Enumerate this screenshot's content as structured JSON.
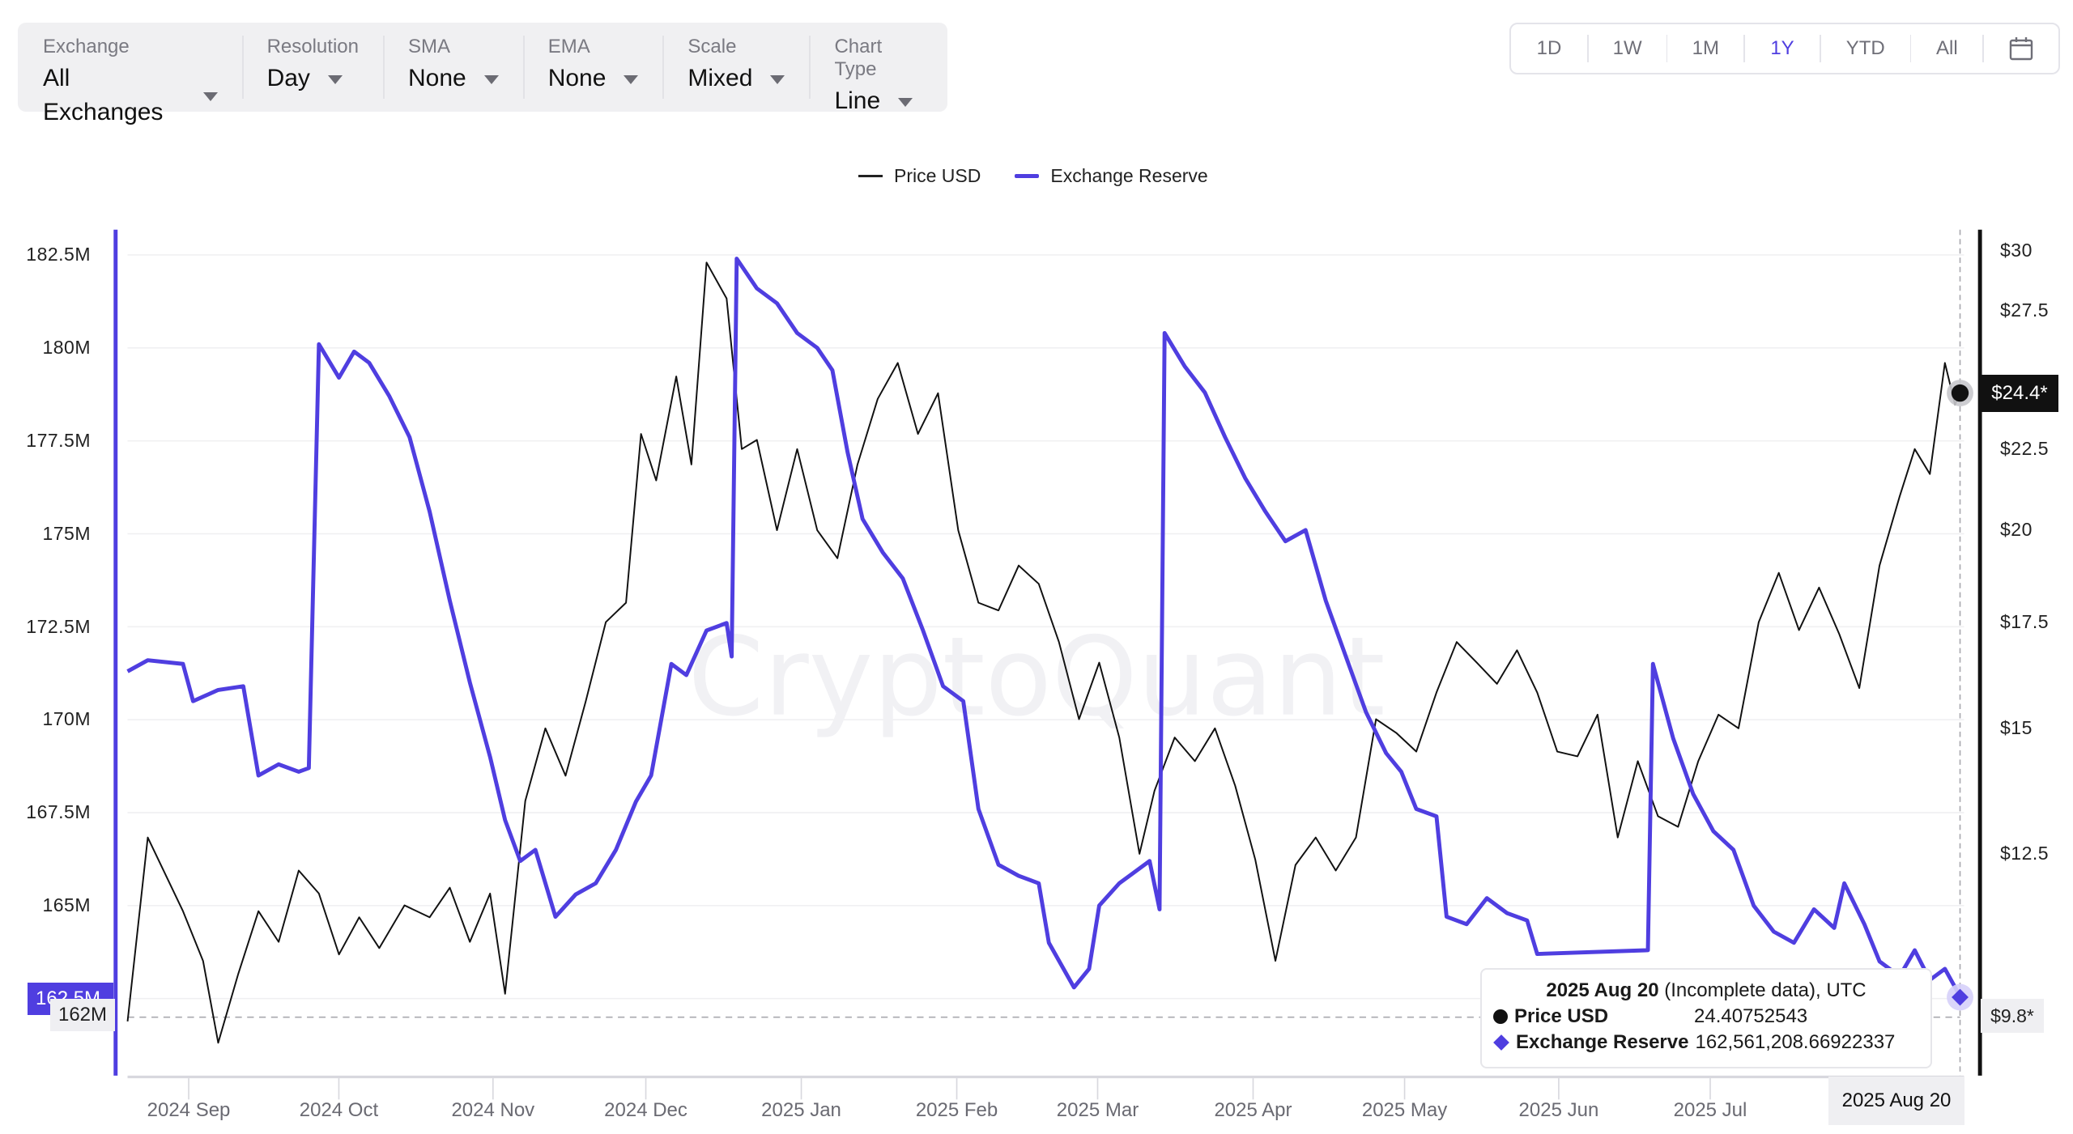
{
  "filters": [
    {
      "label": "Exchange",
      "value": "All Exchanges"
    },
    {
      "label": "Resolution",
      "value": "Day"
    },
    {
      "label": "SMA",
      "value": "None"
    },
    {
      "label": "EMA",
      "value": "None"
    },
    {
      "label": "Scale",
      "value": "Mixed"
    },
    {
      "label": "Chart Type",
      "value": "Line"
    }
  ],
  "range_buttons": [
    {
      "label": "1D",
      "active": false
    },
    {
      "label": "1W",
      "active": false
    },
    {
      "label": "1M",
      "active": false
    },
    {
      "label": "1Y",
      "active": true
    },
    {
      "label": "YTD",
      "active": false
    },
    {
      "label": "All",
      "active": false
    }
  ],
  "calendar_icon": "calendar-icon",
  "watermark": "CryptoQuant",
  "colors": {
    "accent": "#4f3ee0",
    "price": "#111111",
    "grid": "#f0f0f2",
    "axis_text": "#6a6a72"
  },
  "legend": {
    "price": "Price USD",
    "reserve": "Exchange Reserve"
  },
  "tooltip": {
    "title_bold": "2025 Aug 20",
    "title_light": " (Incomplete data), UTC",
    "price_label": "Price USD",
    "price_value": "24.40752543",
    "reserve_label": "Exchange Reserve",
    "reserve_value": "162,561,208.66922337"
  },
  "badges": {
    "left_reserve": "162.5M",
    "left_cursor": "162M",
    "right_price": "$24.4*",
    "right_cursor": "$9.8*",
    "x_cursor": "2025 Aug 20"
  },
  "chart_data": {
    "type": "line",
    "title": "",
    "legend_position": "top-center",
    "grid": true,
    "x_label": "",
    "x_ticks": [
      "2024 Sep",
      "2024 Oct",
      "2024 Nov",
      "2024 Dec",
      "2025 Jan",
      "2025 Feb",
      "2025 Mar",
      "2025 Apr",
      "2025 May",
      "2025 Jun",
      "2025 Jul",
      "2025 Aug"
    ],
    "x_range": [
      "2024 Aug 21",
      "2025 Aug 20"
    ],
    "y_left": {
      "label": "Exchange Reserve",
      "ticks": [
        "182.5M",
        "180M",
        "177.5M",
        "175M",
        "172.5M",
        "170M",
        "167.5M",
        "165M",
        "162.5M"
      ],
      "range": [
        161500000,
        183000000
      ]
    },
    "y_right": {
      "label": "Price USD",
      "scale": "log",
      "ticks": [
        "$30",
        "$27.5",
        "$25",
        "$22.5",
        "$20",
        "$17.5",
        "$15",
        "$12.5"
      ],
      "range": [
        9.5,
        31
      ]
    },
    "series": [
      {
        "name": "Price USD",
        "axis": "right",
        "color": "#111111",
        "points": [
          [
            "2024-08-21",
            9.8
          ],
          [
            "2024-08-25",
            12.8
          ],
          [
            "2024-09-01",
            11.5
          ],
          [
            "2024-09-05",
            10.7
          ],
          [
            "2024-09-08",
            9.5
          ],
          [
            "2024-09-12",
            10.5
          ],
          [
            "2024-09-16",
            11.5
          ],
          [
            "2024-09-20",
            11.0
          ],
          [
            "2024-09-24",
            12.2
          ],
          [
            "2024-09-28",
            11.8
          ],
          [
            "2024-10-02",
            10.8
          ],
          [
            "2024-10-06",
            11.4
          ],
          [
            "2024-10-10",
            10.9
          ],
          [
            "2024-10-15",
            11.6
          ],
          [
            "2024-10-20",
            11.4
          ],
          [
            "2024-10-24",
            11.9
          ],
          [
            "2024-10-28",
            11.0
          ],
          [
            "2024-11-01",
            11.8
          ],
          [
            "2024-11-04",
            10.2
          ],
          [
            "2024-11-08",
            13.5
          ],
          [
            "2024-11-12",
            15.0
          ],
          [
            "2024-11-16",
            14.0
          ],
          [
            "2024-11-20",
            15.6
          ],
          [
            "2024-11-24",
            17.5
          ],
          [
            "2024-11-28",
            18.0
          ],
          [
            "2024-12-01",
            23.0
          ],
          [
            "2024-12-04",
            21.5
          ],
          [
            "2024-12-08",
            25.0
          ],
          [
            "2024-12-11",
            22.0
          ],
          [
            "2024-12-14",
            29.5
          ],
          [
            "2024-12-18",
            28.0
          ],
          [
            "2024-12-21",
            22.5
          ],
          [
            "2024-12-24",
            22.8
          ],
          [
            "2024-12-28",
            20.0
          ],
          [
            "2025-01-01",
            22.5
          ],
          [
            "2025-01-05",
            20.0
          ],
          [
            "2025-01-09",
            19.2
          ],
          [
            "2025-01-13",
            22.0
          ],
          [
            "2025-01-17",
            24.2
          ],
          [
            "2025-01-21",
            25.5
          ],
          [
            "2025-01-25",
            23.0
          ],
          [
            "2025-01-29",
            24.4
          ],
          [
            "2025-02-02",
            20.0
          ],
          [
            "2025-02-06",
            18.0
          ],
          [
            "2025-02-10",
            17.8
          ],
          [
            "2025-02-14",
            19.0
          ],
          [
            "2025-02-18",
            18.5
          ],
          [
            "2025-02-22",
            17.0
          ],
          [
            "2025-02-26",
            15.2
          ],
          [
            "2025-03-02",
            16.5
          ],
          [
            "2025-03-06",
            14.8
          ],
          [
            "2025-03-10",
            12.5
          ],
          [
            "2025-03-13",
            13.7
          ],
          [
            "2025-03-17",
            14.8
          ],
          [
            "2025-03-21",
            14.3
          ],
          [
            "2025-03-25",
            15.0
          ],
          [
            "2025-03-29",
            13.8
          ],
          [
            "2025-04-02",
            12.4
          ],
          [
            "2025-04-06",
            10.7
          ],
          [
            "2025-04-10",
            12.3
          ],
          [
            "2025-04-14",
            12.8
          ],
          [
            "2025-04-18",
            12.2
          ],
          [
            "2025-04-22",
            12.8
          ],
          [
            "2025-04-26",
            15.2
          ],
          [
            "2025-04-30",
            14.9
          ],
          [
            "2025-05-04",
            14.5
          ],
          [
            "2025-05-08",
            15.8
          ],
          [
            "2025-05-12",
            17.0
          ],
          [
            "2025-05-16",
            16.5
          ],
          [
            "2025-05-20",
            16.0
          ],
          [
            "2025-05-24",
            16.8
          ],
          [
            "2025-05-28",
            15.8
          ],
          [
            "2025-06-01",
            14.5
          ],
          [
            "2025-06-05",
            14.4
          ],
          [
            "2025-06-09",
            15.3
          ],
          [
            "2025-06-13",
            12.8
          ],
          [
            "2025-06-17",
            14.3
          ],
          [
            "2025-06-21",
            13.2
          ],
          [
            "2025-06-25",
            13.0
          ],
          [
            "2025-06-29",
            14.3
          ],
          [
            "2025-07-03",
            15.3
          ],
          [
            "2025-07-07",
            15.0
          ],
          [
            "2025-07-11",
            17.5
          ],
          [
            "2025-07-15",
            18.8
          ],
          [
            "2025-07-19",
            17.3
          ],
          [
            "2025-07-23",
            18.4
          ],
          [
            "2025-07-27",
            17.2
          ],
          [
            "2025-07-31",
            15.9
          ],
          [
            "2025-08-04",
            19.0
          ],
          [
            "2025-08-08",
            21.0
          ],
          [
            "2025-08-11",
            22.5
          ],
          [
            "2025-08-14",
            21.7
          ],
          [
            "2025-08-17",
            25.5
          ],
          [
            "2025-08-19",
            24.0
          ],
          [
            "2025-08-20",
            24.4
          ]
        ]
      },
      {
        "name": "Exchange Reserve",
        "axis": "left",
        "color": "#4f3ee0",
        "points": [
          [
            "2024-08-21",
            171.3
          ],
          [
            "2024-08-25",
            171.6
          ],
          [
            "2024-09-01",
            171.5
          ],
          [
            "2024-09-03",
            170.5
          ],
          [
            "2024-09-08",
            170.8
          ],
          [
            "2024-09-13",
            170.9
          ],
          [
            "2024-09-16",
            168.5
          ],
          [
            "2024-09-20",
            168.8
          ],
          [
            "2024-09-24",
            168.6
          ],
          [
            "2024-09-26",
            168.7
          ],
          [
            "2024-09-28",
            180.1
          ],
          [
            "2024-10-02",
            179.2
          ],
          [
            "2024-10-05",
            179.9
          ],
          [
            "2024-10-08",
            179.6
          ],
          [
            "2024-10-12",
            178.7
          ],
          [
            "2024-10-16",
            177.6
          ],
          [
            "2024-10-20",
            175.6
          ],
          [
            "2024-10-24",
            173.2
          ],
          [
            "2024-10-28",
            171.0
          ],
          [
            "2024-11-01",
            169.0
          ],
          [
            "2024-11-04",
            167.3
          ],
          [
            "2024-11-07",
            166.2
          ],
          [
            "2024-11-10",
            166.5
          ],
          [
            "2024-11-14",
            164.7
          ],
          [
            "2024-11-18",
            165.3
          ],
          [
            "2024-11-22",
            165.6
          ],
          [
            "2024-11-26",
            166.5
          ],
          [
            "2024-11-30",
            167.8
          ],
          [
            "2024-12-03",
            168.5
          ],
          [
            "2024-12-07",
            171.5
          ],
          [
            "2024-12-10",
            171.2
          ],
          [
            "2024-12-14",
            172.4
          ],
          [
            "2024-12-18",
            172.6
          ],
          [
            "2024-12-19",
            171.7
          ],
          [
            "2024-12-20",
            182.4
          ],
          [
            "2024-12-24",
            181.6
          ],
          [
            "2024-12-28",
            181.2
          ],
          [
            "2025-01-01",
            180.4
          ],
          [
            "2025-01-05",
            180.0
          ],
          [
            "2025-01-08",
            179.4
          ],
          [
            "2025-01-11",
            177.2
          ],
          [
            "2025-01-14",
            175.4
          ],
          [
            "2025-01-18",
            174.5
          ],
          [
            "2025-01-22",
            173.8
          ],
          [
            "2025-01-26",
            172.4
          ],
          [
            "2025-01-30",
            170.9
          ],
          [
            "2025-02-03",
            170.5
          ],
          [
            "2025-02-06",
            167.6
          ],
          [
            "2025-02-10",
            166.1
          ],
          [
            "2025-02-14",
            165.8
          ],
          [
            "2025-02-18",
            165.6
          ],
          [
            "2025-02-20",
            164.0
          ],
          [
            "2025-02-25",
            162.8
          ],
          [
            "2025-02-28",
            163.3
          ],
          [
            "2025-03-02",
            165.0
          ],
          [
            "2025-03-06",
            165.6
          ],
          [
            "2025-03-09",
            165.9
          ],
          [
            "2025-03-12",
            166.2
          ],
          [
            "2025-03-14",
            164.9
          ],
          [
            "2025-03-15",
            180.4
          ],
          [
            "2025-03-19",
            179.5
          ],
          [
            "2025-03-23",
            178.8
          ],
          [
            "2025-03-27",
            177.6
          ],
          [
            "2025-03-31",
            176.5
          ],
          [
            "2025-04-04",
            175.6
          ],
          [
            "2025-04-08",
            174.8
          ],
          [
            "2025-04-12",
            175.1
          ],
          [
            "2025-04-16",
            173.2
          ],
          [
            "2025-04-20",
            171.7
          ],
          [
            "2025-04-24",
            170.2
          ],
          [
            "2025-04-28",
            169.1
          ],
          [
            "2025-05-01",
            168.6
          ],
          [
            "2025-05-04",
            167.6
          ],
          [
            "2025-05-08",
            167.4
          ],
          [
            "2025-05-10",
            164.7
          ],
          [
            "2025-05-14",
            164.5
          ],
          [
            "2025-05-18",
            165.2
          ],
          [
            "2025-05-22",
            164.8
          ],
          [
            "2025-05-26",
            164.6
          ],
          [
            "2025-05-28",
            163.7
          ],
          [
            "2025-06-19",
            163.8
          ],
          [
            "2025-06-20",
            171.5
          ],
          [
            "2025-06-24",
            169.5
          ],
          [
            "2025-06-28",
            168.0
          ],
          [
            "2025-07-02",
            167.0
          ],
          [
            "2025-07-06",
            166.5
          ],
          [
            "2025-07-10",
            165.0
          ],
          [
            "2025-07-14",
            164.3
          ],
          [
            "2025-07-18",
            164.0
          ],
          [
            "2025-07-22",
            164.9
          ],
          [
            "2025-07-26",
            164.4
          ],
          [
            "2025-07-28",
            165.6
          ],
          [
            "2025-08-01",
            164.5
          ],
          [
            "2025-08-04",
            163.5
          ],
          [
            "2025-08-08",
            163.1
          ],
          [
            "2025-08-11",
            163.8
          ],
          [
            "2025-08-14",
            163.0
          ],
          [
            "2025-08-17",
            163.3
          ],
          [
            "2025-08-20",
            162.56
          ]
        ]
      }
    ]
  }
}
